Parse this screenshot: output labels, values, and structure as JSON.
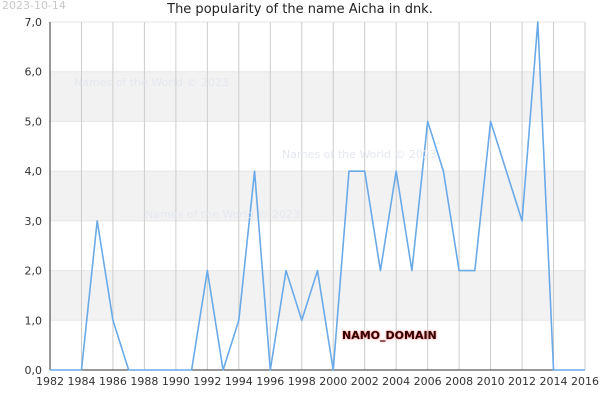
{
  "header": {
    "date_stamp": "2023-10-14",
    "title": "The popularity of the name Aicha in dnk."
  },
  "watermarks": [
    "Names of the World © 2023",
    "Names of the World © 2023",
    "Names of the World © 2023"
  ],
  "domain_label": "NAMO_DOMAIN",
  "colors": {
    "line": "#6aaae8",
    "band": "#f2f2f2",
    "grid": "#cccccc",
    "axis": "#333333"
  },
  "chart_data": {
    "type": "line",
    "title": "The popularity of the name Aicha in dnk.",
    "xlabel": "",
    "ylabel": "",
    "xlim": [
      1982,
      2016
    ],
    "ylim": [
      0,
      7
    ],
    "grid": true,
    "x_ticks": [
      "1982",
      "1984",
      "1986",
      "1988",
      "1990",
      "1992",
      "1994",
      "1996",
      "1998",
      "2000",
      "2002",
      "2004",
      "2006",
      "2008",
      "2010",
      "2012",
      "2014",
      "2016"
    ],
    "y_ticks": [
      "0,0",
      "1,0",
      "2,0",
      "3,0",
      "4,0",
      "5,0",
      "6,0",
      "7,0"
    ],
    "x": [
      1982,
      1983,
      1984,
      1985,
      1986,
      1987,
      1988,
      1989,
      1990,
      1991,
      1992,
      1993,
      1994,
      1995,
      1996,
      1997,
      1998,
      1999,
      2000,
      2001,
      2002,
      2003,
      2004,
      2005,
      2006,
      2007,
      2008,
      2009,
      2010,
      2011,
      2012,
      2013,
      2014,
      2015,
      2016
    ],
    "values": [
      0,
      0,
      0,
      3,
      1,
      0,
      0,
      0,
      0,
      0,
      2,
      0,
      1,
      4,
      0,
      2,
      1,
      2,
      0,
      4,
      4,
      2,
      4,
      2,
      5,
      4,
      2,
      2,
      5,
      4,
      3,
      7,
      0,
      0,
      0
    ]
  }
}
